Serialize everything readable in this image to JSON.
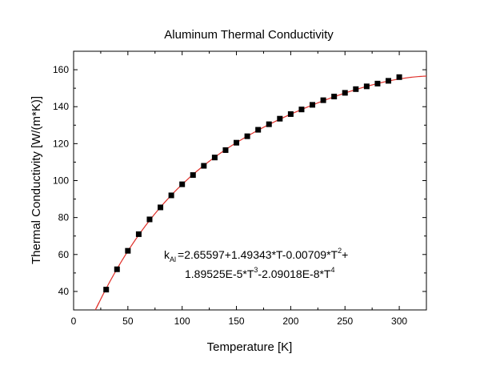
{
  "chart_data": {
    "type": "scatter",
    "title": "Aluminum Thermal Conductivity",
    "xlabel": "Temperature [K]",
    "ylabel": "Thermal Conductivity [W/(m*K)]",
    "xlim": [
      0,
      325
    ],
    "ylim": [
      30,
      170
    ],
    "xticks": [
      0,
      50,
      100,
      150,
      200,
      250,
      300
    ],
    "yticks": [
      40,
      60,
      80,
      100,
      120,
      140,
      160
    ],
    "xtick_labels": [
      "0",
      "50",
      "100",
      "150",
      "200",
      "250",
      "300"
    ],
    "ytick_labels": [
      "40",
      "60",
      "80",
      "100",
      "120",
      "140",
      "160"
    ],
    "grid": false,
    "legend": "none",
    "series": [
      {
        "type": "scatter",
        "marker": "square",
        "color": "#000000",
        "x": [
          30,
          40,
          50,
          60,
          70,
          80,
          90,
          100,
          110,
          120,
          130,
          140,
          150,
          160,
          170,
          180,
          190,
          200,
          210,
          220,
          230,
          240,
          250,
          260,
          270,
          280,
          290,
          300
        ],
        "y": [
          41,
          52,
          62,
          71,
          79,
          85.5,
          92,
          98,
          103,
          108,
          112.5,
          116.5,
          120.5,
          124,
          127.5,
          130.5,
          133.5,
          136,
          138.5,
          141,
          143.5,
          145.5,
          147.5,
          149.5,
          151,
          152.5,
          154,
          156
        ]
      },
      {
        "type": "line",
        "color": "#e0302a",
        "fit": {
          "form": "polynomial",
          "coefficients": [
            2.65597,
            1.49343,
            -0.00709,
            1.89525e-05,
            -2.09018e-08
          ],
          "x_range": [
            20,
            325
          ]
        }
      }
    ],
    "annotation": {
      "symbol": "k",
      "subscript": "Al",
      "line1": "=2.65597+1.49343*T-0.00709*T",
      "sup1": "2",
      "tail1": "+",
      "line2": "1.89525E-5*T",
      "sup2a": "3",
      "mid2": "-2.09018E-8*T",
      "sup2b": "4"
    }
  }
}
